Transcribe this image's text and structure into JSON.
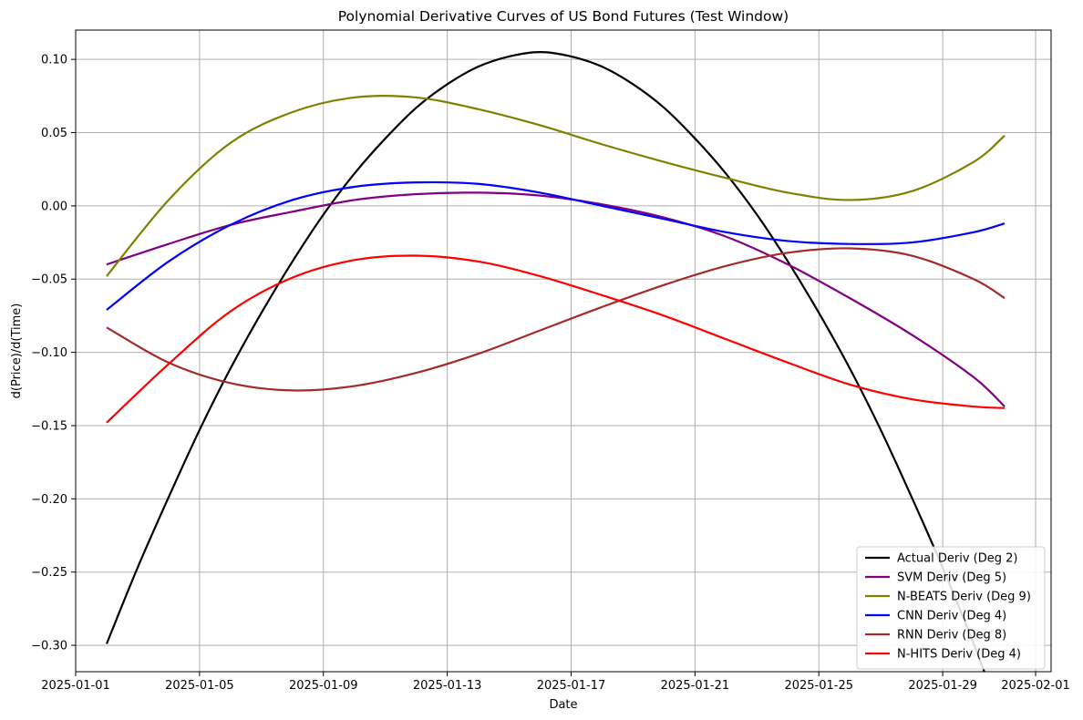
{
  "chart_data": {
    "type": "line",
    "title": "Polynomial Derivative Curves of US Bond Futures (Test Window)",
    "xlabel": "Date",
    "ylabel": "d(Price)/d(Time)",
    "x_is_date": true,
    "xlim": [
      "2025-01-01T00:00",
      "2025-02-01T12:00"
    ],
    "ylim": [
      -0.318,
      0.12
    ],
    "grid": true,
    "legend_position": "lower-right",
    "x_ticks": [
      "2025-01-01",
      "2025-01-05",
      "2025-01-09",
      "2025-01-13",
      "2025-01-17",
      "2025-01-21",
      "2025-01-25",
      "2025-01-29",
      "2025-02-01"
    ],
    "y_ticks": [
      {
        "value": 0.1,
        "label": "0.10"
      },
      {
        "value": 0.05,
        "label": "0.05"
      },
      {
        "value": 0.0,
        "label": "0.00"
      },
      {
        "value": -0.05,
        "label": "−0.05"
      },
      {
        "value": -0.1,
        "label": "−0.10"
      },
      {
        "value": -0.15,
        "label": "−0.15"
      },
      {
        "value": -0.2,
        "label": "−0.20"
      },
      {
        "value": -0.25,
        "label": "−0.25"
      },
      {
        "value": -0.3,
        "label": "−0.30"
      }
    ],
    "series": [
      {
        "name": "Actual Deriv (Deg 2)",
        "color": "#000000",
        "x": [
          "2025-01-02",
          "2025-01-03",
          "2025-01-04",
          "2025-01-05",
          "2025-01-06",
          "2025-01-07",
          "2025-01-08",
          "2025-01-09",
          "2025-01-10",
          "2025-01-11",
          "2025-01-12",
          "2025-01-13",
          "2025-01-14",
          "2025-01-15",
          "2025-01-16",
          "2025-01-17",
          "2025-01-18",
          "2025-01-19",
          "2025-01-20",
          "2025-01-21",
          "2025-01-22",
          "2025-01-23",
          "2025-01-24",
          "2025-01-25",
          "2025-01-26",
          "2025-01-27",
          "2025-01-28",
          "2025-01-29",
          "2025-01-30",
          "2025-01-31"
        ],
        "y": [
          -0.299,
          -0.247,
          -0.199,
          -0.153,
          -0.111,
          -0.073,
          -0.038,
          -0.006,
          0.022,
          0.046,
          0.067,
          0.083,
          0.095,
          0.102,
          0.105,
          0.102,
          0.095,
          0.083,
          0.067,
          0.046,
          0.022,
          -0.006,
          -0.038,
          -0.073,
          -0.111,
          -0.153,
          -0.199,
          -0.247,
          -0.299,
          -0.355
        ]
      },
      {
        "name": "SVM Deriv (Deg 5)",
        "color": "#800080",
        "x": [
          "2025-01-02",
          "2025-01-04",
          "2025-01-06",
          "2025-01-08",
          "2025-01-10",
          "2025-01-12",
          "2025-01-14",
          "2025-01-16",
          "2025-01-18",
          "2025-01-20",
          "2025-01-22",
          "2025-01-24",
          "2025-01-26",
          "2025-01-28",
          "2025-01-30",
          "2025-01-31"
        ],
        "y": [
          -0.04,
          -0.026,
          -0.013,
          -0.004,
          0.004,
          0.008,
          0.009,
          0.007,
          0.001,
          -0.008,
          -0.021,
          -0.04,
          -0.063,
          -0.088,
          -0.117,
          -0.137
        ]
      },
      {
        "name": "N-BEATS Deriv (Deg 9)",
        "color": "#808000",
        "x": [
          "2025-01-02",
          "2025-01-04",
          "2025-01-06",
          "2025-01-08",
          "2025-01-10",
          "2025-01-12",
          "2025-01-14",
          "2025-01-16",
          "2025-01-18",
          "2025-01-20",
          "2025-01-22",
          "2025-01-24",
          "2025-01-26",
          "2025-01-28",
          "2025-01-30",
          "2025-01-31"
        ],
        "y": [
          -0.048,
          0.004,
          0.043,
          0.064,
          0.074,
          0.074,
          0.066,
          0.055,
          0.042,
          0.03,
          0.019,
          0.009,
          0.004,
          0.01,
          0.03,
          0.048
        ]
      },
      {
        "name": "CNN Deriv (Deg 4)",
        "color": "#0000ff",
        "x": [
          "2025-01-02",
          "2025-01-04",
          "2025-01-06",
          "2025-01-08",
          "2025-01-10",
          "2025-01-12",
          "2025-01-14",
          "2025-01-16",
          "2025-01-18",
          "2025-01-20",
          "2025-01-22",
          "2025-01-24",
          "2025-01-26",
          "2025-01-28",
          "2025-01-30",
          "2025-01-31"
        ],
        "y": [
          -0.071,
          -0.038,
          -0.013,
          0.004,
          0.013,
          0.016,
          0.015,
          0.009,
          0.0,
          -0.009,
          -0.018,
          -0.024,
          -0.026,
          -0.025,
          -0.018,
          -0.012
        ]
      },
      {
        "name": "RNN Deriv (Deg 8)",
        "color": "#a52a2a",
        "x": [
          "2025-01-02",
          "2025-01-04",
          "2025-01-06",
          "2025-01-08",
          "2025-01-10",
          "2025-01-12",
          "2025-01-14",
          "2025-01-16",
          "2025-01-18",
          "2025-01-20",
          "2025-01-22",
          "2025-01-24",
          "2025-01-26",
          "2025-01-28",
          "2025-01-30",
          "2025-01-31"
        ],
        "y": [
          -0.083,
          -0.107,
          -0.121,
          -0.126,
          -0.123,
          -0.114,
          -0.101,
          -0.085,
          -0.069,
          -0.054,
          -0.041,
          -0.032,
          -0.029,
          -0.034,
          -0.05,
          -0.063
        ]
      },
      {
        "name": "N-HITS Deriv (Deg 4)",
        "color": "#ff0000",
        "x": [
          "2025-01-02",
          "2025-01-04",
          "2025-01-06",
          "2025-01-08",
          "2025-01-10",
          "2025-01-12",
          "2025-01-14",
          "2025-01-16",
          "2025-01-18",
          "2025-01-20",
          "2025-01-22",
          "2025-01-24",
          "2025-01-26",
          "2025-01-28",
          "2025-01-30",
          "2025-01-31"
        ],
        "y": [
          -0.148,
          -0.108,
          -0.072,
          -0.049,
          -0.037,
          -0.034,
          -0.038,
          -0.048,
          -0.061,
          -0.075,
          -0.091,
          -0.107,
          -0.122,
          -0.132,
          -0.137,
          -0.138
        ]
      }
    ]
  }
}
